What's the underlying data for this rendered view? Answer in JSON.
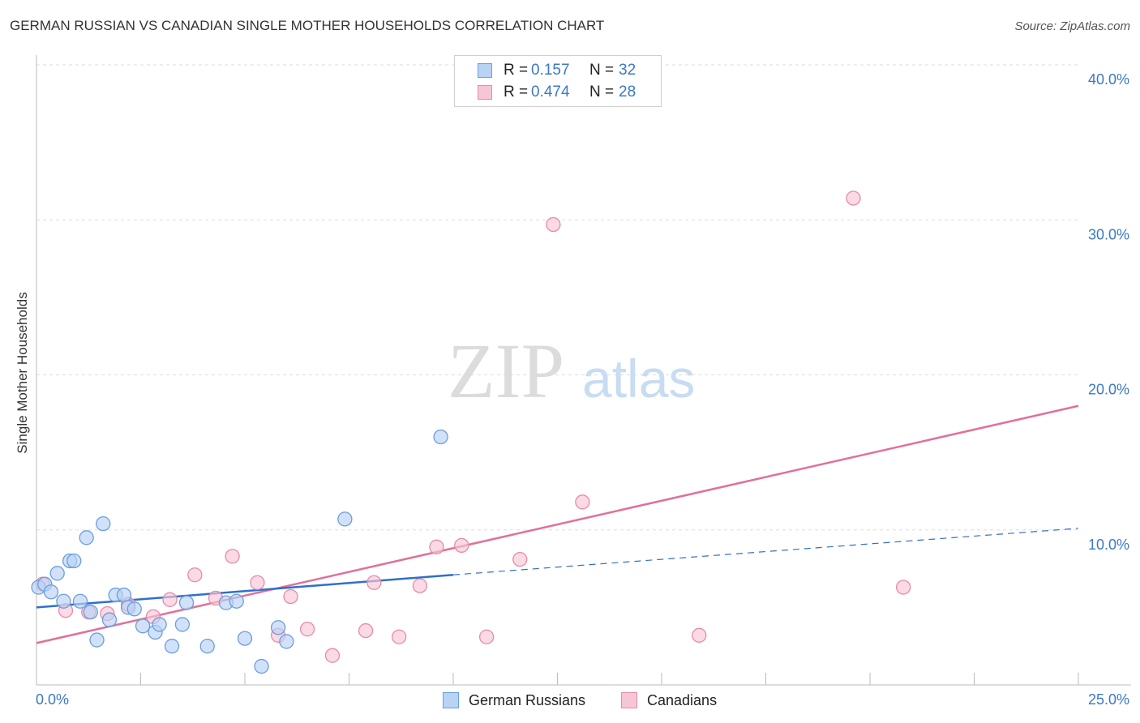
{
  "header": {
    "title": "GERMAN RUSSIAN VS CANADIAN SINGLE MOTHER HOUSEHOLDS CORRELATION CHART",
    "source": "Source: ZipAtlas.com"
  },
  "watermark": {
    "zip": "ZIP",
    "atlas": "atlas"
  },
  "legend": {
    "rows": [
      {
        "r_key": "R =",
        "r_value": "0.157",
        "n_key": "N =",
        "n_value": "32"
      },
      {
        "r_key": "R =",
        "r_value": "0.474",
        "n_key": "N =",
        "n_value": "28"
      }
    ]
  },
  "bottom_legend": {
    "series1": "German Russians",
    "series2": "Canadians"
  },
  "colors": {
    "blue_fill": "#b9d3f5",
    "blue_stroke": "#6a9ee0",
    "blue_line": "#2f6fcc",
    "pink_fill": "#f7c6d6",
    "pink_stroke": "#e88aa8",
    "pink_line": "#e0709a",
    "tick_text": "#3a78c8",
    "grid": "#dddddd"
  },
  "chart_data": {
    "type": "scatter",
    "title": "GERMAN RUSSIAN VS CANADIAN SINGLE MOTHER HOUSEHOLDS CORRELATION CHART",
    "xlabel": "",
    "ylabel": "Single Mother Households",
    "xlim": [
      0,
      25
    ],
    "ylim": [
      0,
      40
    ],
    "x_tick_labels": [
      "0.0%",
      "25.0%"
    ],
    "y_ticks": [
      {
        "value": 10,
        "label": "10.0%"
      },
      {
        "value": 20,
        "label": "20.0%"
      },
      {
        "value": 30,
        "label": "30.0%"
      },
      {
        "value": 40,
        "label": "40.0%"
      }
    ],
    "series": [
      {
        "name": "German Russians",
        "r": 0.157,
        "n": 32,
        "points": [
          {
            "x": 0.05,
            "y": 6.3
          },
          {
            "x": 0.2,
            "y": 6.5
          },
          {
            "x": 0.35,
            "y": 6.0
          },
          {
            "x": 0.5,
            "y": 7.2
          },
          {
            "x": 0.65,
            "y": 5.4
          },
          {
            "x": 0.8,
            "y": 8.0
          },
          {
            "x": 0.9,
            "y": 8.0
          },
          {
            "x": 1.05,
            "y": 5.4
          },
          {
            "x": 1.2,
            "y": 9.5
          },
          {
            "x": 1.3,
            "y": 4.7
          },
          {
            "x": 1.45,
            "y": 2.9
          },
          {
            "x": 1.6,
            "y": 10.4
          },
          {
            "x": 1.75,
            "y": 4.2
          },
          {
            "x": 1.9,
            "y": 5.8
          },
          {
            "x": 2.1,
            "y": 5.8
          },
          {
            "x": 2.2,
            "y": 5.0
          },
          {
            "x": 2.35,
            "y": 4.9
          },
          {
            "x": 2.55,
            "y": 3.8
          },
          {
            "x": 2.85,
            "y": 3.4
          },
          {
            "x": 2.95,
            "y": 3.9
          },
          {
            "x": 3.25,
            "y": 2.5
          },
          {
            "x": 3.5,
            "y": 3.9
          },
          {
            "x": 3.6,
            "y": 5.3
          },
          {
            "x": 4.1,
            "y": 2.5
          },
          {
            "x": 4.55,
            "y": 5.3
          },
          {
            "x": 4.8,
            "y": 5.4
          },
          {
            "x": 5.0,
            "y": 3.0
          },
          {
            "x": 5.4,
            "y": 1.2
          },
          {
            "x": 5.8,
            "y": 3.7
          },
          {
            "x": 6.0,
            "y": 2.8
          },
          {
            "x": 7.4,
            "y": 10.7
          },
          {
            "x": 9.7,
            "y": 16.0
          }
        ],
        "trend": {
          "x0": 0,
          "y0": 5.0,
          "x1": 10.0,
          "y1": 7.1,
          "dashed_to_x": 25.0,
          "dashed_to_y": 10.1
        }
      },
      {
        "name": "Canadians",
        "r": 0.474,
        "n": 28,
        "points": [
          {
            "x": 0.15,
            "y": 6.5
          },
          {
            "x": 0.7,
            "y": 4.8
          },
          {
            "x": 1.25,
            "y": 4.7
          },
          {
            "x": 1.7,
            "y": 4.6
          },
          {
            "x": 2.2,
            "y": 5.2
          },
          {
            "x": 2.8,
            "y": 4.4
          },
          {
            "x": 3.2,
            "y": 5.5
          },
          {
            "x": 3.8,
            "y": 7.1
          },
          {
            "x": 4.3,
            "y": 5.6
          },
          {
            "x": 4.7,
            "y": 8.3
          },
          {
            "x": 5.3,
            "y": 6.6
          },
          {
            "x": 5.8,
            "y": 3.2
          },
          {
            "x": 6.1,
            "y": 5.7
          },
          {
            "x": 6.5,
            "y": 3.6
          },
          {
            "x": 7.1,
            "y": 1.9
          },
          {
            "x": 7.9,
            "y": 3.5
          },
          {
            "x": 8.1,
            "y": 6.6
          },
          {
            "x": 8.7,
            "y": 3.1
          },
          {
            "x": 9.2,
            "y": 6.4
          },
          {
            "x": 9.6,
            "y": 8.9
          },
          {
            "x": 10.2,
            "y": 9.0
          },
          {
            "x": 10.8,
            "y": 3.1
          },
          {
            "x": 11.6,
            "y": 8.1
          },
          {
            "x": 12.4,
            "y": 29.7
          },
          {
            "x": 13.1,
            "y": 11.8
          },
          {
            "x": 15.9,
            "y": 3.2
          },
          {
            "x": 19.6,
            "y": 31.4
          },
          {
            "x": 20.8,
            "y": 6.3
          }
        ],
        "trend": {
          "x0": 0,
          "y0": 2.7,
          "x1": 25.0,
          "y1": 18.0
        }
      }
    ]
  }
}
